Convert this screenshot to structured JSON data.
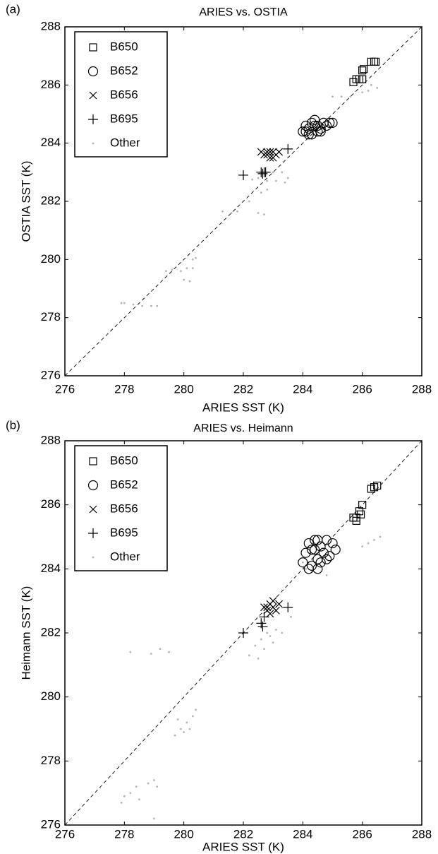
{
  "chart_data": [
    {
      "type": "scatter",
      "panel_label": "(a)",
      "title": "ARIES vs. OSTIA",
      "x_label": "ARIES SST (K)",
      "y_label": "OSTIA SST (K)",
      "xlim": [
        276,
        288
      ],
      "ylim": [
        276,
        288
      ],
      "xticks": [
        276,
        278,
        280,
        282,
        284,
        286,
        288
      ],
      "yticks": [
        276,
        278,
        280,
        282,
        284,
        286,
        288
      ],
      "legend": "upper left",
      "reference_line": true,
      "series": [
        {
          "name": "B650",
          "marker": "square",
          "color": "#000000",
          "x": [
            286.3,
            286.4,
            286.45,
            285.8,
            285.9,
            286.0,
            286.05,
            285.7,
            286.0
          ],
          "values": [
            286.8,
            286.8,
            286.8,
            286.2,
            286.2,
            286.5,
            286.55,
            286.1,
            286.2
          ]
        },
        {
          "name": "B652",
          "marker": "circle",
          "color": "#000000",
          "x": [
            284.0,
            284.1,
            284.2,
            284.3,
            284.4,
            284.5,
            284.6,
            284.7,
            284.8,
            284.9,
            284.3,
            284.5,
            284.2,
            284.6,
            284.4,
            284.1,
            285.0
          ],
          "values": [
            284.4,
            284.6,
            284.5,
            284.7,
            284.8,
            284.6,
            284.5,
            284.7,
            284.6,
            284.7,
            284.3,
            284.4,
            284.3,
            284.4,
            284.6,
            284.4,
            284.7
          ]
        },
        {
          "name": "B656",
          "marker": "x",
          "color": "#000000",
          "x": [
            282.6,
            282.7,
            282.8,
            282.9,
            283.0,
            283.1,
            283.0,
            282.9,
            283.2,
            282.8
          ],
          "values": [
            283.7,
            283.6,
            283.7,
            283.5,
            283.7,
            283.6,
            283.5,
            283.7,
            283.7,
            283.6
          ]
        },
        {
          "name": "B695",
          "marker": "plus",
          "color": "#000000",
          "x": [
            282.0,
            282.6,
            282.65,
            282.7,
            282.75,
            283.5
          ],
          "values": [
            282.9,
            283.0,
            282.95,
            283.0,
            283.0,
            283.8
          ]
        },
        {
          "name": "Other",
          "marker": "dot",
          "color": "#b4b4b4",
          "x": [
            278.0,
            278.3,
            278.6,
            278.9,
            279.1,
            277.9,
            279.4,
            279.6,
            279.9,
            280.1,
            280.3,
            280.0,
            280.2,
            280.3,
            280.4,
            281.3,
            281.6,
            281.8,
            282.5,
            282.7,
            282.2,
            282.3,
            282.5,
            282.8,
            283.1,
            283.4,
            282.6,
            282.8,
            283.0,
            283.3,
            284.2,
            285.0,
            285.3,
            285.6,
            286.0,
            286.2,
            286.5,
            286.3,
            283.5
          ],
          "values": [
            278.5,
            278.45,
            278.4,
            278.4,
            278.4,
            278.5,
            279.6,
            279.65,
            279.6,
            279.7,
            279.7,
            279.3,
            279.25,
            280.0,
            280.05,
            281.65,
            281.6,
            281.65,
            281.6,
            281.55,
            282.0,
            282.75,
            282.8,
            282.7,
            282.7,
            282.65,
            282.3,
            282.4,
            283.0,
            283.0,
            284.2,
            285.6,
            285.6,
            285.6,
            285.75,
            285.8,
            285.9,
            286.0,
            282.8
          ]
        }
      ]
    },
    {
      "type": "scatter",
      "panel_label": "(b)",
      "title": "ARIES vs. Heimann",
      "x_label": "ARIES SST (K)",
      "y_label": "Heimann SST (K)",
      "xlim": [
        276,
        288
      ],
      "ylim": [
        276,
        288
      ],
      "xticks": [
        276,
        278,
        280,
        282,
        284,
        286,
        288
      ],
      "yticks": [
        276,
        278,
        280,
        282,
        284,
        286,
        288
      ],
      "legend": "upper left",
      "reference_line": true,
      "series": [
        {
          "name": "B650",
          "marker": "square",
          "color": "#000000",
          "x": [
            286.3,
            286.4,
            286.5,
            285.7,
            285.8,
            285.9,
            286.0,
            285.95,
            285.8
          ],
          "values": [
            286.5,
            286.55,
            286.6,
            285.6,
            285.5,
            285.8,
            286.0,
            285.7,
            285.6
          ]
        },
        {
          "name": "B652",
          "marker": "circle",
          "color": "#000000",
          "x": [
            284.0,
            284.1,
            284.2,
            284.3,
            284.4,
            284.5,
            284.6,
            284.7,
            284.8,
            284.9,
            285.0,
            284.3,
            284.5,
            284.2,
            284.4,
            284.6,
            284.8,
            284.5,
            285.1
          ],
          "values": [
            284.2,
            284.5,
            284.8,
            284.6,
            284.9,
            284.3,
            284.7,
            284.5,
            284.9,
            284.4,
            284.8,
            284.1,
            284.0,
            284.0,
            284.6,
            284.2,
            284.3,
            284.9,
            284.6
          ]
        },
        {
          "name": "B656",
          "marker": "x",
          "color": "#000000",
          "x": [
            282.7,
            282.8,
            282.9,
            283.0,
            283.1,
            283.2,
            282.9,
            283.0,
            282.8
          ],
          "values": [
            282.8,
            282.7,
            282.9,
            282.8,
            282.7,
            282.9,
            282.6,
            283.0,
            282.8
          ]
        },
        {
          "name": "B695",
          "marker": "plus",
          "color": "#000000",
          "x": [
            282.0,
            282.6,
            282.7,
            282.65,
            283.5
          ],
          "values": [
            282.0,
            282.3,
            282.5,
            282.2,
            282.8
          ]
        },
        {
          "name": "Other",
          "marker": "dot",
          "color": "#b4b4b4",
          "x": [
            277.9,
            278.0,
            278.2,
            278.4,
            278.5,
            278.8,
            279.0,
            279.1,
            279.0,
            279.7,
            279.9,
            280.1,
            280.3,
            280.4,
            280.2,
            280.0,
            279.8,
            278.2,
            278.9,
            279.2,
            279.5,
            282.2,
            282.4,
            282.6,
            282.8,
            283.0,
            282.5,
            283.1,
            282.7,
            282.9,
            283.3,
            283.6,
            284.0,
            284.3,
            284.8,
            286.2,
            286.4,
            286.6,
            286.0,
            284.1
          ],
          "values": [
            276.7,
            276.9,
            277.0,
            277.2,
            276.8,
            277.3,
            277.4,
            277.2,
            276.2,
            278.8,
            279.0,
            279.2,
            279.4,
            279.6,
            279.0,
            278.9,
            279.3,
            281.4,
            281.35,
            281.5,
            281.4,
            281.3,
            281.6,
            281.8,
            282.0,
            281.7,
            281.2,
            282.1,
            281.5,
            281.9,
            282.0,
            282.5,
            284.2,
            283.9,
            283.8,
            284.8,
            284.9,
            285.0,
            284.7,
            284.0
          ]
        }
      ]
    }
  ]
}
